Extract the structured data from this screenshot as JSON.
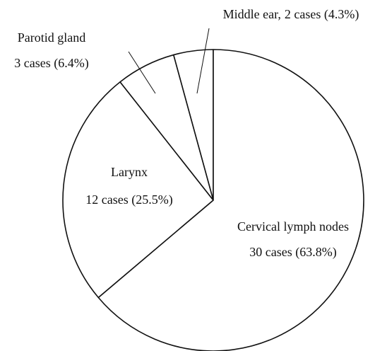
{
  "chart_data": {
    "type": "pie",
    "categories": [
      "Middle ear,",
      "Parotid gland",
      "Larynx",
      "Cervical lymph nodes"
    ],
    "values": [
      2,
      3,
      12,
      30
    ],
    "value_labels": [
      "2 cases (4.3%)",
      "3 cases (6.4%)",
      "12 cases (25.5%)",
      "30 cases (63.8%)"
    ],
    "color": "#ffffff"
  }
}
